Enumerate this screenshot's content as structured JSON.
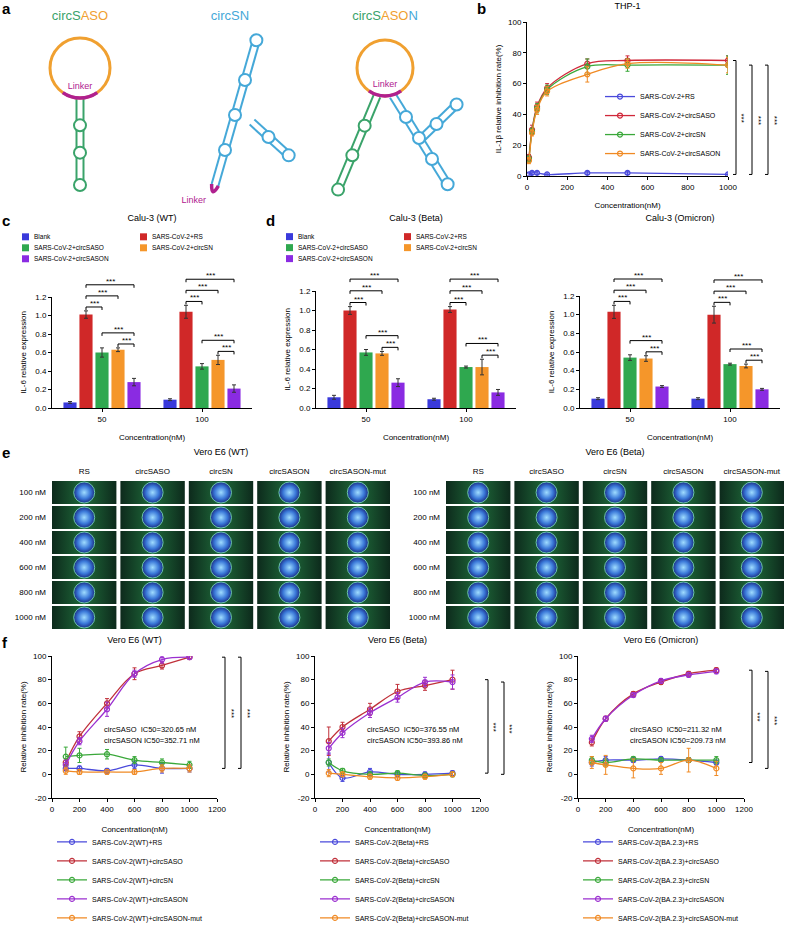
{
  "chart_data": [
    {
      "panel": "b",
      "type": "line",
      "title": "THP-1",
      "x_label": "Concentration(nM)",
      "y_label": "IL-1β relative inhibition rate(%)",
      "x": [
        10,
        25,
        50,
        100,
        300,
        500,
        1000
      ],
      "xlim": [
        0,
        1000
      ],
      "xticks": [
        0,
        200,
        400,
        600,
        800,
        1000
      ],
      "ylim": [
        0,
        100
      ],
      "yticks": [
        0,
        20,
        40,
        60,
        80,
        100
      ],
      "grid": false,
      "legend": "right",
      "marker": "circle-open",
      "series": [
        {
          "name": "SARS-CoV-2+RS",
          "color": "#4a4adb",
          "values": [
            1,
            2,
            2,
            1,
            2,
            2,
            1
          ],
          "errors": [
            1,
            1,
            1,
            1,
            1,
            1,
            1
          ]
        },
        {
          "name": "SARS-CoV-2+circSASO",
          "color": "#d0283a",
          "values": [
            12,
            30,
            45,
            57,
            73,
            75,
            75
          ],
          "errors": [
            2,
            3,
            3,
            3,
            3,
            3,
            3
          ]
        },
        {
          "name": "SARS-CoV-2+circSN",
          "color": "#3aa83a",
          "values": [
            11,
            29,
            44,
            56,
            71,
            72,
            72
          ],
          "errors": [
            2,
            2,
            3,
            3,
            5,
            4,
            6
          ]
        },
        {
          "name": "SARS-CoV-2+circSASON",
          "color": "#f08a24",
          "values": [
            10,
            28,
            43,
            55,
            66,
            73,
            72
          ],
          "errors": [
            2,
            2,
            3,
            3,
            5,
            3,
            5
          ]
        }
      ],
      "comparisons": [
        {
          "from": "SARS-CoV-2+RS",
          "to": "SARS-CoV-2+circSASO",
          "label": "***"
        },
        {
          "from": "SARS-CoV-2+RS",
          "to": "SARS-CoV-2+circSN",
          "label": "***"
        },
        {
          "from": "SARS-CoV-2+RS",
          "to": "SARS-CoV-2+circSASON",
          "label": "***"
        }
      ]
    },
    {
      "panel": "c",
      "type": "bar",
      "title": "Calu-3 (WT)",
      "x_label": "Concentration(nM)",
      "y_label": "IL-6 relative expression",
      "categories": [
        "50",
        "100"
      ],
      "ylim": [
        0,
        1.2
      ],
      "yticks": [
        {
          "value": 0,
          "label": "0.0"
        },
        0.2,
        0.4,
        0.6,
        0.8,
        {
          "value": 1,
          "label": "1.0"
        },
        1.2
      ],
      "grid": false,
      "legend": "top",
      "series": [
        {
          "name": "Blank",
          "color": "#3a3adb",
          "values": [
            0.06,
            0.09
          ],
          "errors": [
            0.01,
            0.01
          ]
        },
        {
          "name": "SARS-CoV-2+RS",
          "color": "#d02828",
          "values": [
            1.01,
            1.04
          ],
          "errors": [
            0.04,
            0.07
          ]
        },
        {
          "name": "SARS-CoV-2+circSASO",
          "color": "#2fa84f",
          "values": [
            0.6,
            0.45
          ],
          "errors": [
            0.05,
            0.03
          ]
        },
        {
          "name": "SARS-CoV-2+circSN",
          "color": "#f5962a",
          "values": [
            0.63,
            0.52
          ],
          "errors": [
            0.02,
            0.05
          ]
        },
        {
          "name": "SARS-CoV-2+circSASON",
          "color": "#8a2be2",
          "values": [
            0.28,
            0.21
          ],
          "errors": [
            0.04,
            0.04
          ]
        }
      ],
      "comparisons": [
        {
          "from": "SARS-CoV-2+RS",
          "to": "SARS-CoV-2+circSASO",
          "label": "***"
        },
        {
          "from": "SARS-CoV-2+RS",
          "to": "SARS-CoV-2+circSN",
          "label": "***"
        },
        {
          "from": "SARS-CoV-2+RS",
          "to": "SARS-CoV-2+circSASON",
          "label": "***"
        },
        {
          "from": "SARS-CoV-2+circSN",
          "to": "SARS-CoV-2+circSASON",
          "label": "***"
        },
        {
          "from": "SARS-CoV-2+circSASO",
          "to": "SARS-CoV-2+circSASON",
          "label": "***"
        }
      ]
    },
    {
      "panel": "d",
      "type": "bar",
      "title": "Calu-3 (Beta)",
      "x_label": "Concentration(nM)",
      "y_label": "IL-6 relative expression",
      "categories": [
        "50",
        "100"
      ],
      "ylim": [
        0,
        1.2
      ],
      "yticks": [
        {
          "value": 0,
          "label": "0.0"
        },
        0.2,
        0.4,
        0.6,
        0.8,
        {
          "value": 1,
          "label": "1.0"
        },
        1.2
      ],
      "grid": false,
      "legend": "top",
      "series": [
        {
          "name": "Blank",
          "color": "#3a3adb",
          "values": [
            0.11,
            0.09
          ],
          "errors": [
            0.02,
            0.01
          ]
        },
        {
          "name": "SARS-CoV-2+RS",
          "color": "#d02828",
          "values": [
            1.0,
            1.01
          ],
          "errors": [
            0.04,
            0.03
          ]
        },
        {
          "name": "SARS-CoV-2+circSASO",
          "color": "#2fa84f",
          "values": [
            0.57,
            0.42
          ],
          "errors": [
            0.03,
            0.01
          ]
        },
        {
          "name": "SARS-CoV-2+circSN",
          "color": "#f5962a",
          "values": [
            0.56,
            0.42
          ],
          "errors": [
            0.02,
            0.08
          ]
        },
        {
          "name": "SARS-CoV-2+circSASON",
          "color": "#8a2be2",
          "values": [
            0.26,
            0.16
          ],
          "errors": [
            0.04,
            0.03
          ]
        }
      ],
      "comparisons": [
        {
          "from": "SARS-CoV-2+RS",
          "to": "SARS-CoV-2+circSASO",
          "label": "***"
        },
        {
          "from": "SARS-CoV-2+RS",
          "to": "SARS-CoV-2+circSN",
          "label": "***"
        },
        {
          "from": "SARS-CoV-2+RS",
          "to": "SARS-CoV-2+circSASON",
          "label": "***"
        },
        {
          "from": "SARS-CoV-2+circSN",
          "to": "SARS-CoV-2+circSASON",
          "label": "***"
        },
        {
          "from": "SARS-CoV-2+circSASO",
          "to": "SARS-CoV-2+circSASON",
          "label": "***"
        }
      ]
    },
    {
      "type": "bar",
      "title": "Calu-3 (Omicron)",
      "x_label": "Concentration(nM)",
      "y_label": "IL-6 relative expression",
      "categories": [
        "50",
        "100"
      ],
      "ylim": [
        0,
        1.2
      ],
      "yticks": [
        {
          "value": 0,
          "label": "0.0"
        },
        0.2,
        0.4,
        0.6,
        0.8,
        {
          "value": 1,
          "label": "1.0"
        },
        1.2
      ],
      "grid": false,
      "series": [
        {
          "name": "Blank",
          "color": "#3a3adb",
          "values": [
            0.1,
            0.1
          ],
          "errors": [
            0.01,
            0.01
          ]
        },
        {
          "name": "SARS-CoV-2+RS",
          "color": "#d02828",
          "values": [
            1.03,
            1.0
          ],
          "errors": [
            0.07,
            0.09
          ]
        },
        {
          "name": "SARS-CoV-2+circSASO",
          "color": "#2fa84f",
          "values": [
            0.54,
            0.47
          ],
          "errors": [
            0.03,
            0.01
          ]
        },
        {
          "name": "SARS-CoV-2+circSN",
          "color": "#f5962a",
          "values": [
            0.53,
            0.45
          ],
          "errors": [
            0.03,
            0.02
          ]
        },
        {
          "name": "SARS-CoV-2+circSASON",
          "color": "#8a2be2",
          "values": [
            0.23,
            0.2
          ],
          "errors": [
            0.01,
            0.01
          ]
        }
      ],
      "comparisons": [
        {
          "from": "SARS-CoV-2+RS",
          "to": "SARS-CoV-2+circSASO",
          "label": "***"
        },
        {
          "from": "SARS-CoV-2+RS",
          "to": "SARS-CoV-2+circSN",
          "label": "***"
        },
        {
          "from": "SARS-CoV-2+RS",
          "to": "SARS-CoV-2+circSASON",
          "label": "***"
        },
        {
          "from": "SARS-CoV-2+circSN",
          "to": "SARS-CoV-2+circSASON",
          "label": "***"
        },
        {
          "from": "SARS-CoV-2+circSASO",
          "to": "SARS-CoV-2+circSASON",
          "label": "***"
        }
      ]
    },
    {
      "panel": "f",
      "type": "line",
      "title": "Vero E6 (WT)",
      "x_label": "Concentration(nM)",
      "y_label": "Relative inhibition rate(%)",
      "x": [
        100,
        200,
        400,
        600,
        800,
        1000
      ],
      "xlim": [
        0,
        1200
      ],
      "xticks": [
        0,
        200,
        400,
        600,
        800,
        1000,
        1200
      ],
      "ylim": [
        -20,
        100
      ],
      "yticks": [
        -20,
        0,
        20,
        40,
        60,
        80,
        100
      ],
      "grid": false,
      "legend": "bottom",
      "marker": "circle-open",
      "series": [
        {
          "name": "SARS-CoV-2(WT)+RS",
          "color": "#4a4adb",
          "values": [
            5,
            5,
            3,
            8,
            5,
            5
          ],
          "errors": [
            2,
            2,
            2,
            3,
            4,
            3
          ]
        },
        {
          "name": "SARS-CoV-2(WT)+circSASO",
          "color": "#c0303a",
          "values": [
            10,
            32,
            60,
            85,
            92,
            99
          ],
          "errors": [
            3,
            4,
            4,
            5,
            3,
            1
          ]
        },
        {
          "name": "SARS-CoV-2(WT)+circSN",
          "color": "#3aa83a",
          "values": [
            15,
            16,
            17,
            12,
            10,
            8
          ],
          "errors": [
            8,
            6,
            4,
            3,
            3,
            3
          ]
        },
        {
          "name": "SARS-CoV-2(WT)+circSASON",
          "color": "#9b30d0",
          "values": [
            8,
            28,
            55,
            85,
            97,
            99
          ],
          "errors": [
            4,
            3,
            6,
            3,
            3,
            2
          ]
        },
        {
          "name": "SARS-CoV-2(WT)+circSASON-mut",
          "color": "#f08a24",
          "values": [
            3,
            2,
            2,
            2,
            5,
            5
          ],
          "errors": [
            3,
            2,
            2,
            2,
            3,
            3
          ]
        }
      ],
      "annotations": [
        "circSASO  IC50=320.65 nM",
        "circSASON IC50=352.71 nM"
      ],
      "comparisons": [
        {
          "from": "SARS-CoV-2(WT)+RS",
          "to": "SARS-CoV-2(WT)+circSASO",
          "label": "***"
        },
        {
          "from": "SARS-CoV-2(WT)+circSASON-mut",
          "to": "SARS-CoV-2(WT)+circSASON",
          "label": "***"
        }
      ]
    },
    {
      "type": "line",
      "title": "Vero E6 (Beta)",
      "x_label": "Concentration(nM)",
      "y_label": "Relative inhibition rate(%)",
      "x": [
        100,
        200,
        400,
        600,
        800,
        1000
      ],
      "xlim": [
        0,
        1200
      ],
      "xticks": [
        0,
        200,
        400,
        600,
        800,
        1000,
        1200
      ],
      "ylim": [
        -20,
        100
      ],
      "yticks": [
        -20,
        0,
        20,
        40,
        60,
        80,
        100
      ],
      "grid": false,
      "legend": "bottom",
      "marker": "circle-open",
      "series": [
        {
          "name": "SARS-CoV-2(Beta)+RS",
          "color": "#4a4adb",
          "values": [
            10,
            -3,
            2,
            0,
            0,
            1
          ],
          "errors": [
            8,
            3,
            3,
            2,
            2,
            2
          ]
        },
        {
          "name": "SARS-CoV-2(Beta)+circSASO",
          "color": "#c0303a",
          "values": [
            28,
            40,
            55,
            70,
            75,
            80
          ],
          "errors": [
            12,
            4,
            5,
            6,
            4,
            8
          ]
        },
        {
          "name": "SARS-CoV-2(Beta)+circSN",
          "color": "#3aa83a",
          "values": [
            10,
            3,
            0,
            1,
            -1,
            0
          ],
          "errors": [
            3,
            2,
            2,
            2,
            2,
            2
          ]
        },
        {
          "name": "SARS-CoV-2(Beta)+circSASON",
          "color": "#9b30d0",
          "values": [
            22,
            35,
            52,
            65,
            78,
            78
          ],
          "errors": [
            5,
            4,
            4,
            4,
            4,
            6
          ]
        },
        {
          "name": "SARS-CoV-2(Beta)+circSASON-mut",
          "color": "#f08a24",
          "values": [
            1,
            0,
            -2,
            -3,
            -2,
            0
          ],
          "errors": [
            3,
            2,
            2,
            2,
            2,
            2
          ]
        }
      ],
      "annotations": [
        "circSASO  IC50=376.55 nM",
        "circSASON IC50=393.86 nM"
      ],
      "comparisons": [
        {
          "from": "SARS-CoV-2(Beta)+RS",
          "to": "SARS-CoV-2(Beta)+circSASO",
          "label": "***"
        },
        {
          "from": "SARS-CoV-2(Beta)+circSASON-mut",
          "to": "SARS-CoV-2(Beta)+circSASON",
          "label": "***"
        }
      ]
    },
    {
      "type": "line",
      "title": "Vero E6 (Omicron)",
      "x_label": "Concentration(nM)",
      "y_label": "Relative inhibition rate(%)",
      "x": [
        100,
        200,
        400,
        600,
        800,
        1000
      ],
      "xlim": [
        0,
        1200
      ],
      "xticks": [
        0,
        200,
        400,
        600,
        800,
        1000,
        1200
      ],
      "ylim": [
        -20,
        100
      ],
      "yticks": [
        -20,
        0,
        20,
        40,
        60,
        80,
        100
      ],
      "grid": false,
      "legend": "bottom",
      "marker": "circle-open",
      "series": [
        {
          "name": "SARS-CoV-2(BA.2.3)+RS",
          "color": "#4a4adb",
          "values": [
            10,
            12,
            12,
            13,
            12,
            10
          ],
          "errors": [
            3,
            3,
            2,
            2,
            2,
            2
          ]
        },
        {
          "name": "SARS-CoV-2(BA.2.3)+circSASO",
          "color": "#c0303a",
          "values": [
            27,
            47,
            68,
            78,
            85,
            88
          ],
          "errors": [
            3,
            2,
            2,
            2,
            2,
            2
          ]
        },
        {
          "name": "SARS-CoV-2(BA.2.3)+circSN",
          "color": "#3aa83a",
          "values": [
            12,
            10,
            13,
            12,
            12,
            12
          ],
          "errors": [
            3,
            3,
            2,
            2,
            2,
            3
          ]
        },
        {
          "name": "SARS-CoV-2(BA.2.3)+circSASON",
          "color": "#9b30d0",
          "values": [
            30,
            47,
            67,
            79,
            84,
            87
          ],
          "errors": [
            3,
            2,
            2,
            2,
            2,
            2
          ]
        },
        {
          "name": "SARS-CoV-2(BA.2.3)+circSASON-mut",
          "color": "#f08a24",
          "values": [
            10,
            8,
            5,
            5,
            12,
            5
          ],
          "errors": [
            5,
            8,
            8,
            5,
            10,
            6
          ]
        }
      ],
      "annotations": [
        "circSASO  IC50=211.32 nM",
        "circSASON IC50=209.73 nM"
      ],
      "comparisons": [
        {
          "from": "SARS-CoV-2(BA.2.3)+RS",
          "to": "SARS-CoV-2(BA.2.3)+circSASO",
          "label": "***"
        },
        {
          "from": "SARS-CoV-2(BA.2.3)+circSASON-mut",
          "to": "SARS-CoV-2(BA.2.3)+circSASON",
          "label": "***"
        }
      ]
    }
  ],
  "diagram": {
    "panel": "a",
    "items": [
      {
        "parts": [
          {
            "text": "circS",
            "color": "#3aa36a"
          },
          {
            "text": "ASO",
            "color": "#f0a030"
          }
        ],
        "linker": "Linker"
      },
      {
        "parts": [
          {
            "text": "circSN",
            "color": "#45a8d8"
          }
        ],
        "linker": "Linker"
      },
      {
        "parts": [
          {
            "text": "circS",
            "color": "#3aa36a"
          },
          {
            "text": "ASO",
            "color": "#f0a030"
          },
          {
            "text": "N",
            "color": "#45a8d8"
          }
        ],
        "linker": "Linker"
      }
    ]
  },
  "images": {
    "panel": "e",
    "grids": [
      {
        "title": "Vero E6 (WT)",
        "columns": [
          "RS",
          "circSASO",
          "circSN",
          "circSASON",
          "circSASON-mut"
        ],
        "rows": [
          "100 nM",
          "200 nM",
          "400 nM",
          "600 nM",
          "800 nM",
          "1000 nM"
        ]
      },
      {
        "title": "Vero E6 (Beta)",
        "columns": [
          "RS",
          "circSASO",
          "circSN",
          "circSASON",
          "circSASON-mut"
        ],
        "rows": [
          "100 nM",
          "200 nM",
          "400 nM",
          "600 nM",
          "800 nM",
          "1000 nM"
        ]
      }
    ]
  }
}
